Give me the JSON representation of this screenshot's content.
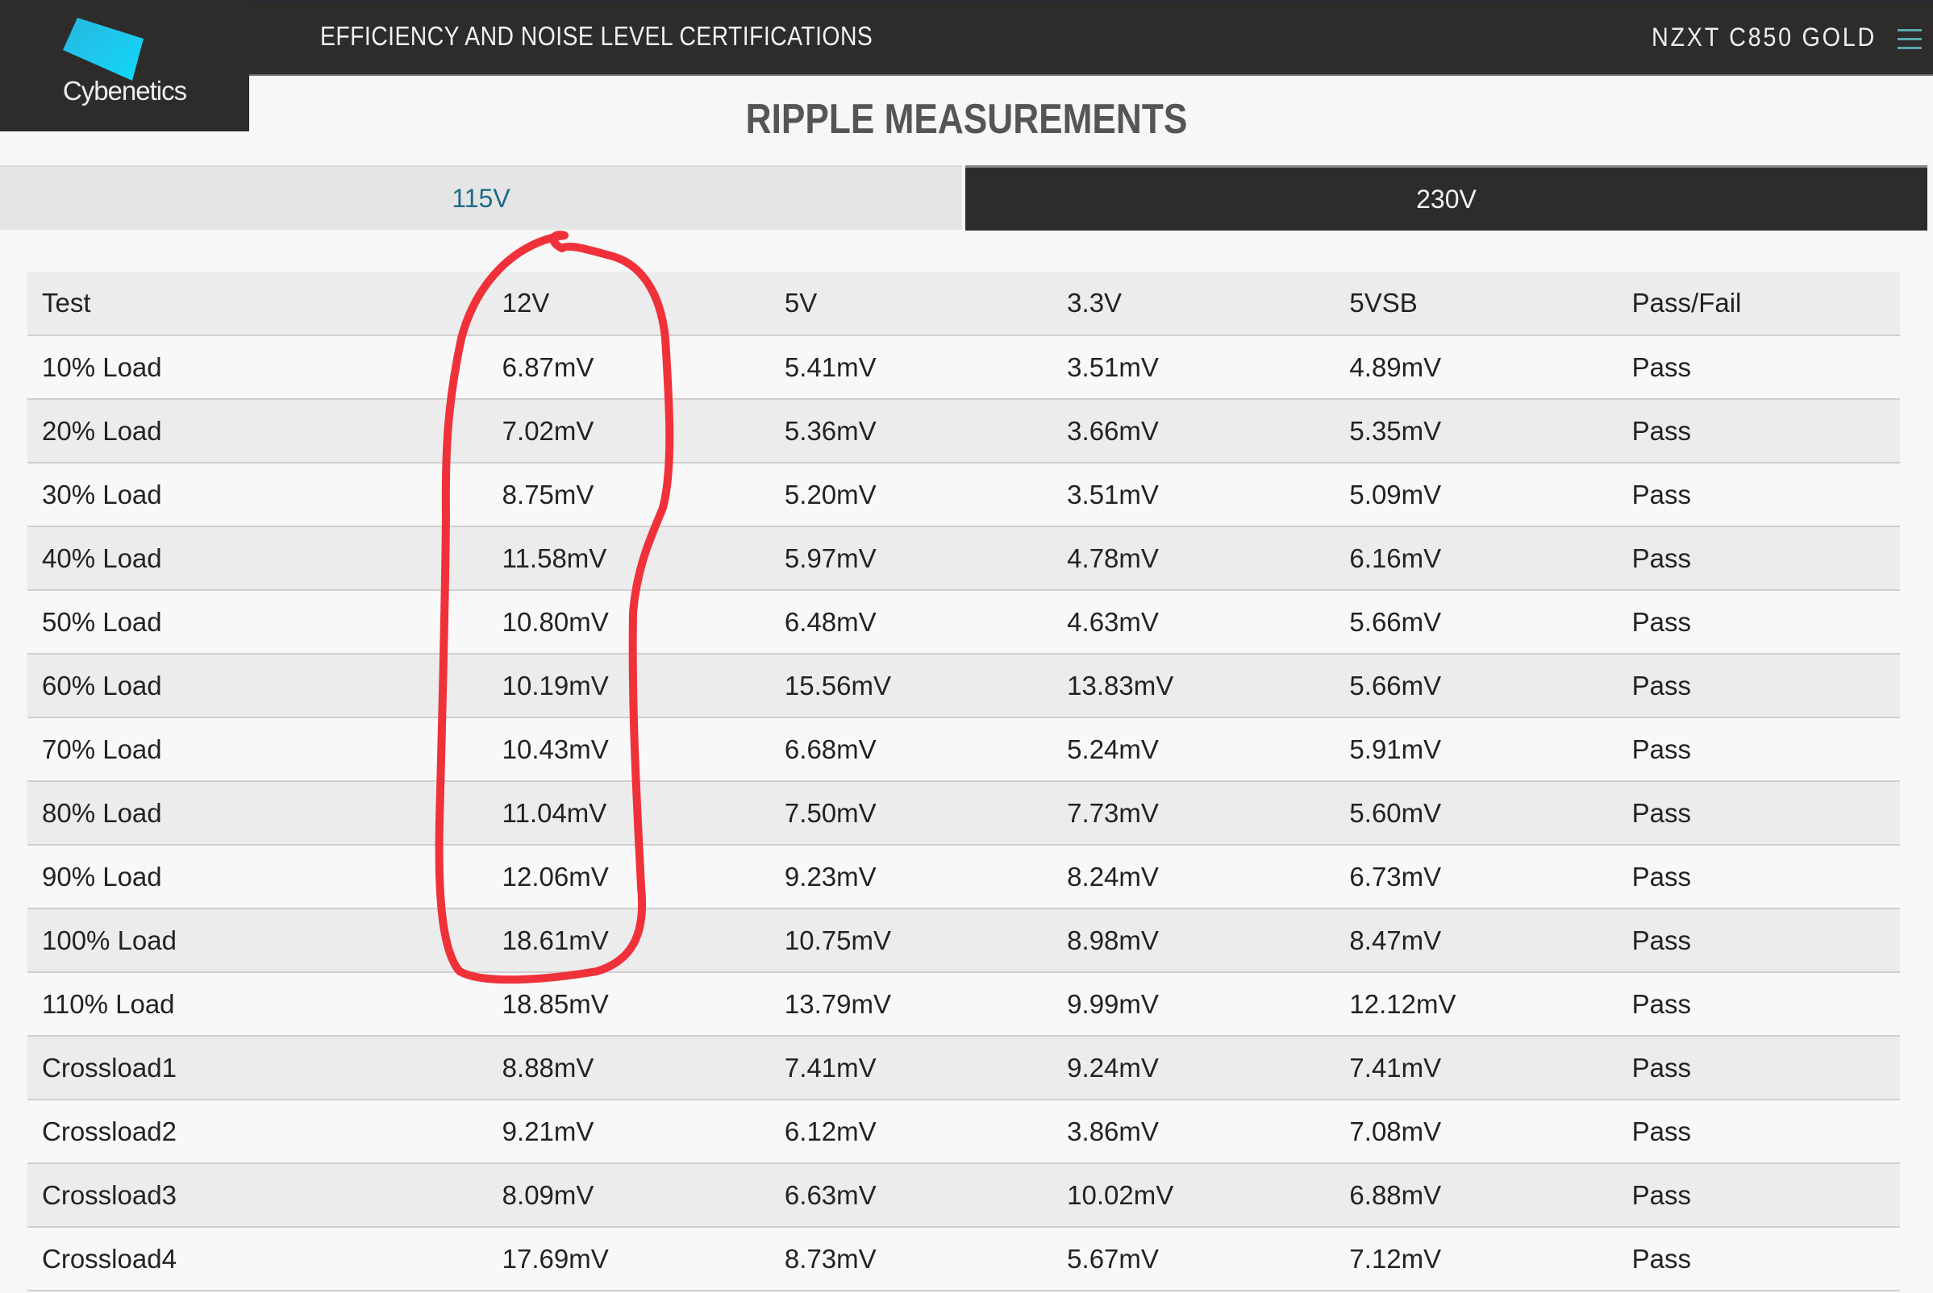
{
  "brand": {
    "logo_text": "Cybenetics",
    "logo_color": "#1ec8f0"
  },
  "nav": {
    "title": "EFFICIENCY AND NOISE LEVEL CERTIFICATIONS",
    "model": "NZXT C850 GOLD",
    "menu_icon": "hamburger-icon"
  },
  "page": {
    "title": "RIPPLE MEASUREMENTS"
  },
  "tabs": [
    {
      "label": "115V",
      "active": true
    },
    {
      "label": "230V",
      "active": false
    }
  ],
  "table": {
    "headers": [
      "Test",
      "12V",
      "5V",
      "3.3V",
      "5VSB",
      "Pass/Fail"
    ],
    "rows": [
      [
        "10% Load",
        "6.87mV",
        "5.41mV",
        "3.51mV",
        "4.89mV",
        "Pass"
      ],
      [
        "20% Load",
        "7.02mV",
        "5.36mV",
        "3.66mV",
        "5.35mV",
        "Pass"
      ],
      [
        "30% Load",
        "8.75mV",
        "5.20mV",
        "3.51mV",
        "5.09mV",
        "Pass"
      ],
      [
        "40% Load",
        "11.58mV",
        "5.97mV",
        "4.78mV",
        "6.16mV",
        "Pass"
      ],
      [
        "50% Load",
        "10.80mV",
        "6.48mV",
        "4.63mV",
        "5.66mV",
        "Pass"
      ],
      [
        "60% Load",
        "10.19mV",
        "15.56mV",
        "13.83mV",
        "5.66mV",
        "Pass"
      ],
      [
        "70% Load",
        "10.43mV",
        "6.68mV",
        "5.24mV",
        "5.91mV",
        "Pass"
      ],
      [
        "80% Load",
        "11.04mV",
        "7.50mV",
        "7.73mV",
        "5.60mV",
        "Pass"
      ],
      [
        "90% Load",
        "12.06mV",
        "9.23mV",
        "8.24mV",
        "6.73mV",
        "Pass"
      ],
      [
        "100% Load",
        "18.61mV",
        "10.75mV",
        "8.98mV",
        "8.47mV",
        "Pass"
      ],
      [
        "110% Load",
        "18.85mV",
        "13.79mV",
        "9.99mV",
        "12.12mV",
        "Pass"
      ],
      [
        "Crossload1",
        "8.88mV",
        "7.41mV",
        "9.24mV",
        "7.41mV",
        "Pass"
      ],
      [
        "Crossload2",
        "9.21mV",
        "6.12mV",
        "3.86mV",
        "7.08mV",
        "Pass"
      ],
      [
        "Crossload3",
        "8.09mV",
        "6.63mV",
        "10.02mV",
        "6.88mV",
        "Pass"
      ],
      [
        "Crossload4",
        "17.69mV",
        "8.73mV",
        "5.67mV",
        "7.12mV",
        "Pass"
      ]
    ]
  },
  "annotation": {
    "color": "#f0313a"
  }
}
